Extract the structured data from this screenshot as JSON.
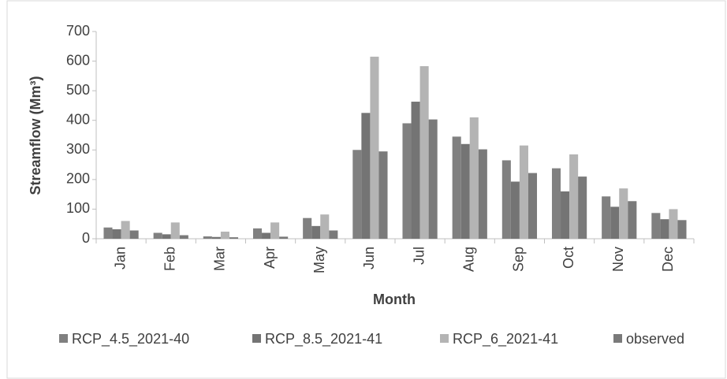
{
  "chart_data": {
    "type": "bar",
    "x_label": "Month",
    "y_label": "Streamflow (Mm³)",
    "categories": [
      "Jan",
      "Feb",
      "Mar",
      "Apr",
      "May",
      "Jun",
      "Jul",
      "Aug",
      "Sep",
      "Oct",
      "Nov",
      "Dec"
    ],
    "series": [
      {
        "name": "RCP_4.5_2021-40",
        "color": "#808080",
        "values": [
          38,
          20,
          8,
          35,
          70,
          300,
          390,
          345,
          265,
          238,
          143,
          87
        ]
      },
      {
        "name": "RCP_8.5_2021-41",
        "color": "#747474",
        "values": [
          32,
          15,
          6,
          20,
          43,
          425,
          463,
          320,
          193,
          160,
          108,
          66
        ]
      },
      {
        "name": "RCP_6_2021-41",
        "color": "#b4b4b4",
        "values": [
          60,
          55,
          24,
          55,
          82,
          615,
          583,
          410,
          315,
          285,
          170,
          100
        ]
      },
      {
        "name": "observed",
        "color": "#7a7a7a",
        "values": [
          28,
          12,
          5,
          7,
          28,
          295,
          403,
          302,
          222,
          210,
          127,
          63
        ]
      }
    ],
    "ylim": [
      0,
      700
    ],
    "yticks": [
      0,
      100,
      200,
      300,
      400,
      500,
      600,
      700
    ],
    "legend": "bottom"
  }
}
